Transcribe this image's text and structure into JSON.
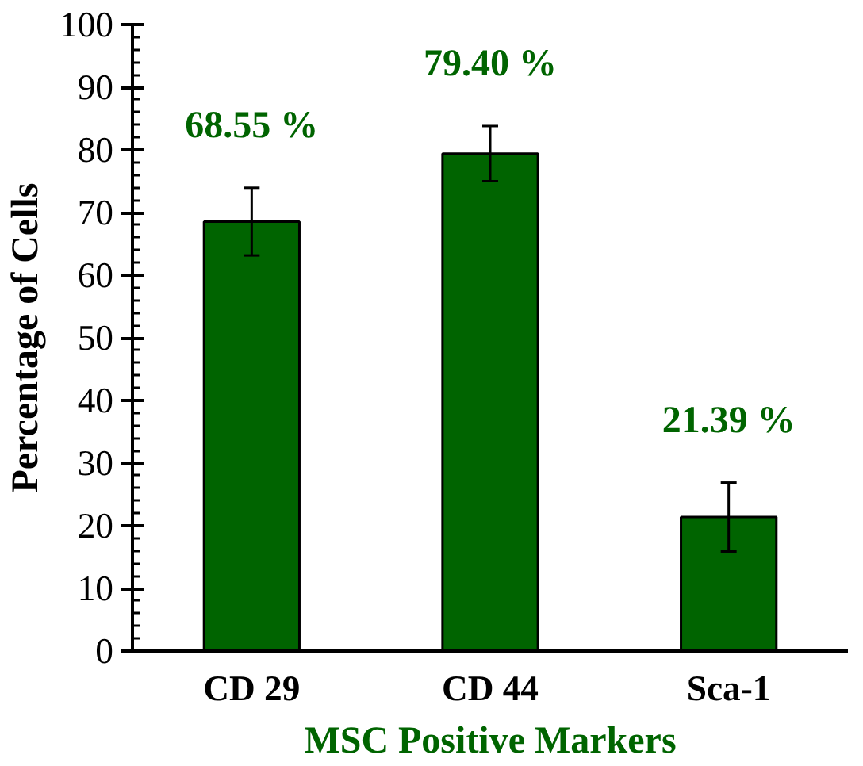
{
  "chart_data": {
    "type": "bar",
    "categories": [
      "CD 29",
      "CD 44",
      "Sca-1"
    ],
    "values": [
      68.55,
      79.4,
      21.39
    ],
    "errors": [
      5.4,
      4.4,
      5.5
    ],
    "value_labels": [
      "68.55 %",
      "79.40 %",
      "21.39 %"
    ],
    "color": "#006400",
    "xlabel": "MSC Positive Markers",
    "ylabel": "Percentage of Cells",
    "ylim": [
      0,
      100
    ],
    "yticks": [
      0,
      10,
      20,
      30,
      40,
      50,
      60,
      70,
      80,
      90,
      100
    ],
    "grid": false
  }
}
